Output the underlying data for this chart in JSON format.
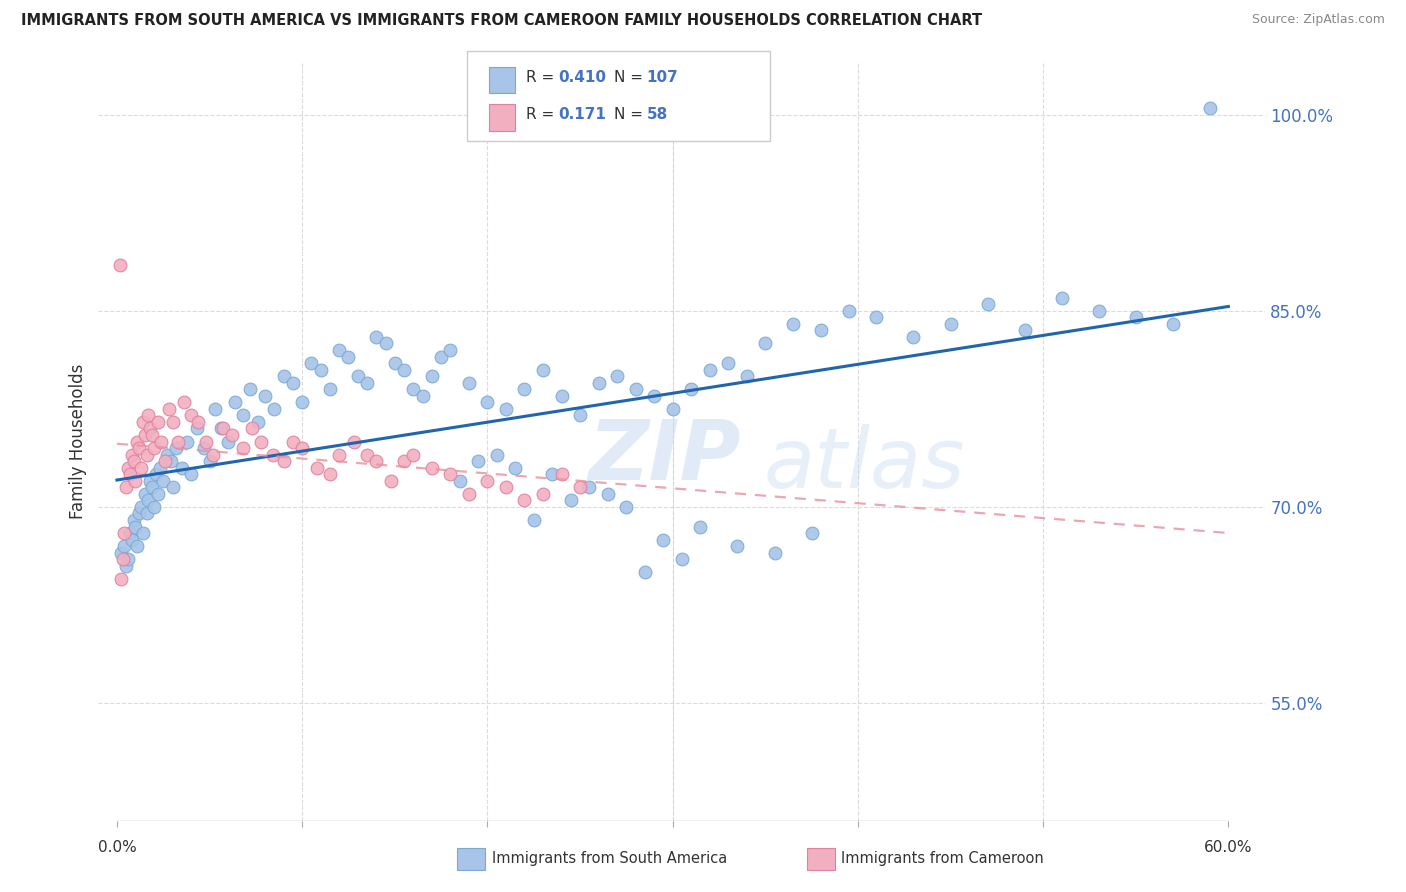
{
  "title": "IMMIGRANTS FROM SOUTH AMERICA VS IMMIGRANTS FROM CAMEROON FAMILY HOUSEHOLDS CORRELATION CHART",
  "source": "Source: ZipAtlas.com",
  "ylabel": "Family Households",
  "y_ticks": [
    55.0,
    70.0,
    85.0,
    100.0
  ],
  "blue_color": "#a8c4e8",
  "pink_color": "#f2afc0",
  "blue_line_color": "#2166ac",
  "pink_line_color": "#e8909f",
  "watermark_zip": "ZIP",
  "watermark_atlas": "atlas",
  "xmin": 0.0,
  "xmax": 60.0,
  "ymin": 46.0,
  "ymax": 104.0,
  "blue_x": [
    0.2,
    0.4,
    0.5,
    0.6,
    0.7,
    0.8,
    0.9,
    1.0,
    1.1,
    1.2,
    1.3,
    1.4,
    1.5,
    1.6,
    1.7,
    1.8,
    1.9,
    2.0,
    2.1,
    2.2,
    2.3,
    2.5,
    2.7,
    2.9,
    3.0,
    3.2,
    3.5,
    3.8,
    4.0,
    4.3,
    4.7,
    5.0,
    5.3,
    5.6,
    6.0,
    6.4,
    6.8,
    7.2,
    7.6,
    8.0,
    8.5,
    9.0,
    9.5,
    10.0,
    10.5,
    11.0,
    11.5,
    12.0,
    12.5,
    13.0,
    13.5,
    14.0,
    14.5,
    15.0,
    15.5,
    16.0,
    16.5,
    17.0,
    17.5,
    18.0,
    19.0,
    20.0,
    21.0,
    22.0,
    23.0,
    24.0,
    25.0,
    26.0,
    27.0,
    28.0,
    29.0,
    30.0,
    31.0,
    32.0,
    33.0,
    34.0,
    35.0,
    36.5,
    38.0,
    39.5,
    41.0,
    43.0,
    45.0,
    47.0,
    49.0,
    51.0,
    53.0,
    55.0,
    57.0,
    59.0,
    28.5,
    29.5,
    30.5,
    22.5,
    24.5,
    26.5,
    18.5,
    19.5,
    20.5,
    21.5,
    23.5,
    25.5,
    27.5,
    31.5,
    33.5,
    35.5,
    37.5
  ],
  "blue_y": [
    66.5,
    67.0,
    65.5,
    66.0,
    68.0,
    67.5,
    69.0,
    68.5,
    67.0,
    69.5,
    70.0,
    68.0,
    71.0,
    69.5,
    70.5,
    72.0,
    71.5,
    70.0,
    72.5,
    71.0,
    73.0,
    72.0,
    74.0,
    73.5,
    71.5,
    74.5,
    73.0,
    75.0,
    72.5,
    76.0,
    74.5,
    73.5,
    77.5,
    76.0,
    75.0,
    78.0,
    77.0,
    79.0,
    76.5,
    78.5,
    77.5,
    80.0,
    79.5,
    78.0,
    81.0,
    80.5,
    79.0,
    82.0,
    81.5,
    80.0,
    79.5,
    83.0,
    82.5,
    81.0,
    80.5,
    79.0,
    78.5,
    80.0,
    81.5,
    82.0,
    79.5,
    78.0,
    77.5,
    79.0,
    80.5,
    78.5,
    77.0,
    79.5,
    80.0,
    79.0,
    78.5,
    77.5,
    79.0,
    80.5,
    81.0,
    80.0,
    82.5,
    84.0,
    83.5,
    85.0,
    84.5,
    83.0,
    84.0,
    85.5,
    83.5,
    86.0,
    85.0,
    84.5,
    84.0,
    100.5,
    65.0,
    67.5,
    66.0,
    69.0,
    70.5,
    71.0,
    72.0,
    73.5,
    74.0,
    73.0,
    72.5,
    71.5,
    70.0,
    68.5,
    67.0,
    66.5,
    68.0
  ],
  "pink_x": [
    0.2,
    0.3,
    0.4,
    0.5,
    0.6,
    0.7,
    0.8,
    0.9,
    1.0,
    1.1,
    1.2,
    1.3,
    1.4,
    1.5,
    1.6,
    1.7,
    1.8,
    1.9,
    2.0,
    2.2,
    2.4,
    2.6,
    2.8,
    3.0,
    3.3,
    3.6,
    4.0,
    4.4,
    4.8,
    5.2,
    5.7,
    6.2,
    6.8,
    7.3,
    7.8,
    8.4,
    9.0,
    9.5,
    10.0,
    10.8,
    11.5,
    12.0,
    12.8,
    13.5,
    14.0,
    14.8,
    15.5,
    16.0,
    17.0,
    18.0,
    19.0,
    20.0,
    21.0,
    22.0,
    23.0,
    24.0,
    25.0,
    0.15
  ],
  "pink_y": [
    64.5,
    66.0,
    68.0,
    71.5,
    73.0,
    72.5,
    74.0,
    73.5,
    72.0,
    75.0,
    74.5,
    73.0,
    76.5,
    75.5,
    74.0,
    77.0,
    76.0,
    75.5,
    74.5,
    76.5,
    75.0,
    73.5,
    77.5,
    76.5,
    75.0,
    78.0,
    77.0,
    76.5,
    75.0,
    74.0,
    76.0,
    75.5,
    74.5,
    76.0,
    75.0,
    74.0,
    73.5,
    75.0,
    74.5,
    73.0,
    72.5,
    74.0,
    75.0,
    74.0,
    73.5,
    72.0,
    73.5,
    74.0,
    73.0,
    72.5,
    71.0,
    72.0,
    71.5,
    70.5,
    71.0,
    72.5,
    71.5,
    88.5
  ]
}
